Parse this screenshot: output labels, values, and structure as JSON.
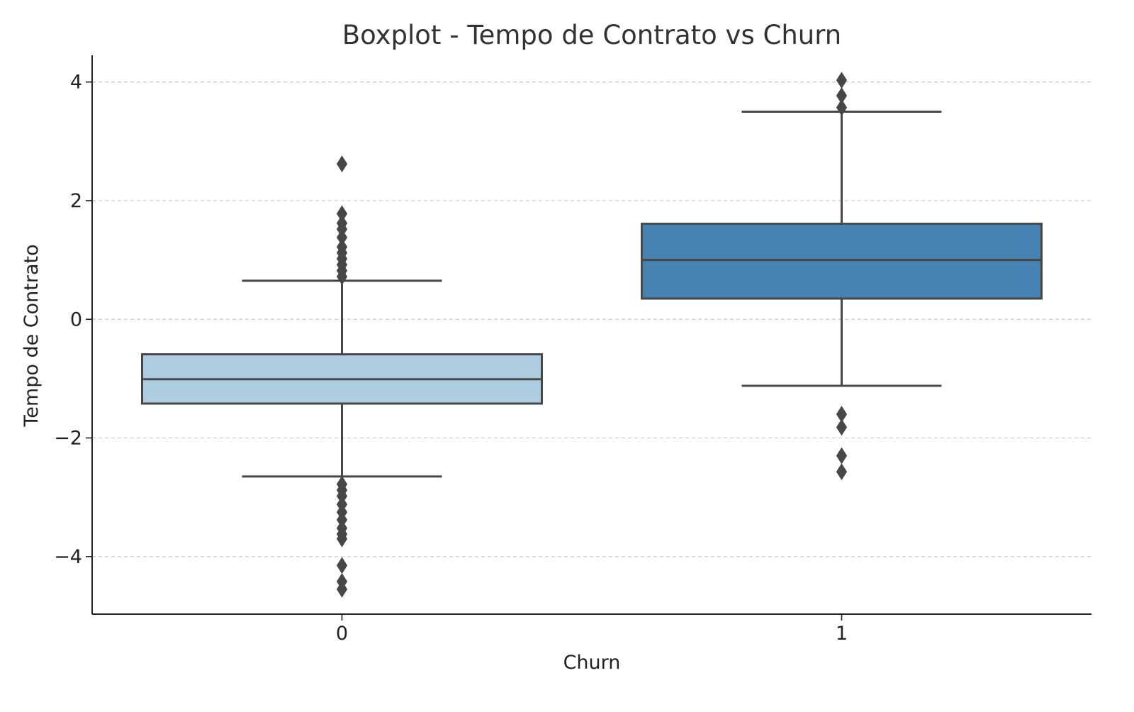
{
  "chart_data": {
    "type": "boxplot",
    "title": "Boxplot - Tempo de Contrato vs Churn",
    "xlabel": "Churn",
    "ylabel": "Tempo de Contrato",
    "ylim": [
      -4.97,
      4.45
    ],
    "yticks": [
      4,
      2,
      0,
      -2,
      -4
    ],
    "ytick_labels": [
      "4",
      "2",
      "0",
      "−2",
      "−4"
    ],
    "grid": "y-dashed",
    "categories": [
      "0",
      "1"
    ],
    "boxes": [
      {
        "category": "0",
        "whisker_low": -2.65,
        "q1": -1.42,
        "median": -1.01,
        "q3": -0.59,
        "whisker_high": 0.65,
        "fill": "#aecde1",
        "outliers": [
          2.62,
          1.78,
          1.62,
          1.52,
          1.38,
          1.22,
          1.12,
          1.02,
          0.92,
          0.82,
          0.72,
          -2.78,
          -2.88,
          -2.98,
          -3.12,
          -3.25,
          -3.38,
          -3.52,
          -3.62,
          -3.7,
          -4.15,
          -4.42,
          -4.55
        ]
      },
      {
        "category": "1",
        "whisker_low": -1.12,
        "q1": 0.35,
        "median": 1.0,
        "q3": 1.61,
        "whisker_high": 3.5,
        "fill": "#4682b4",
        "outliers": [
          4.03,
          3.77,
          3.57,
          -1.6,
          -1.82,
          -2.3,
          -2.57
        ]
      }
    ],
    "colors": {
      "edge": "#474747",
      "axis": "#222222",
      "grid": "#c8c8c8",
      "text": "#222222",
      "title": "#333333"
    }
  }
}
